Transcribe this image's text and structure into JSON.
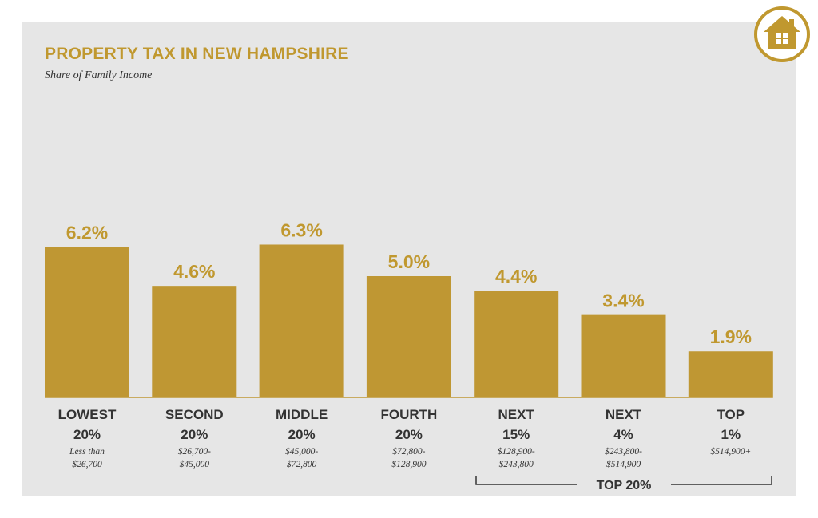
{
  "title": "PROPERTY TAX IN NEW HAMPSHIRE",
  "subtitle": "Share of Family Income",
  "colors": {
    "bar": "#bf9733",
    "label": "#c0982f",
    "panel": "#e6e6e6",
    "text": "#333333",
    "badge": "#c0982f"
  },
  "icon": "house-icon",
  "group_label": "TOP 20%",
  "chart_data": {
    "type": "bar",
    "ylim": [
      0,
      7.5
    ],
    "grid": false,
    "categories": [
      {
        "line1": "LOWEST",
        "line2": "20%",
        "range1": "Less than",
        "range2": "$26,700"
      },
      {
        "line1": "SECOND",
        "line2": "20%",
        "range1": "$26,700-",
        "range2": "$45,000"
      },
      {
        "line1": "MIDDLE",
        "line2": "20%",
        "range1": "$45,000-",
        "range2": "$72,800"
      },
      {
        "line1": "FOURTH",
        "line2": "20%",
        "range1": "$72,800-",
        "range2": "$128,900"
      },
      {
        "line1": "NEXT",
        "line2": "15%",
        "range1": "$128,900-",
        "range2": "$243,800"
      },
      {
        "line1": "NEXT",
        "line2": "4%",
        "range1": "$243,800-",
        "range2": "$514,900"
      },
      {
        "line1": "TOP",
        "line2": "1%",
        "range1": "$514,900+",
        "range2": ""
      }
    ],
    "values": [
      6.2,
      4.6,
      6.3,
      5.0,
      4.4,
      3.4,
      1.9
    ],
    "data_labels": [
      "6.2%",
      "4.6%",
      "6.3%",
      "5.0%",
      "4.4%",
      "3.4%",
      "1.9%"
    ]
  }
}
